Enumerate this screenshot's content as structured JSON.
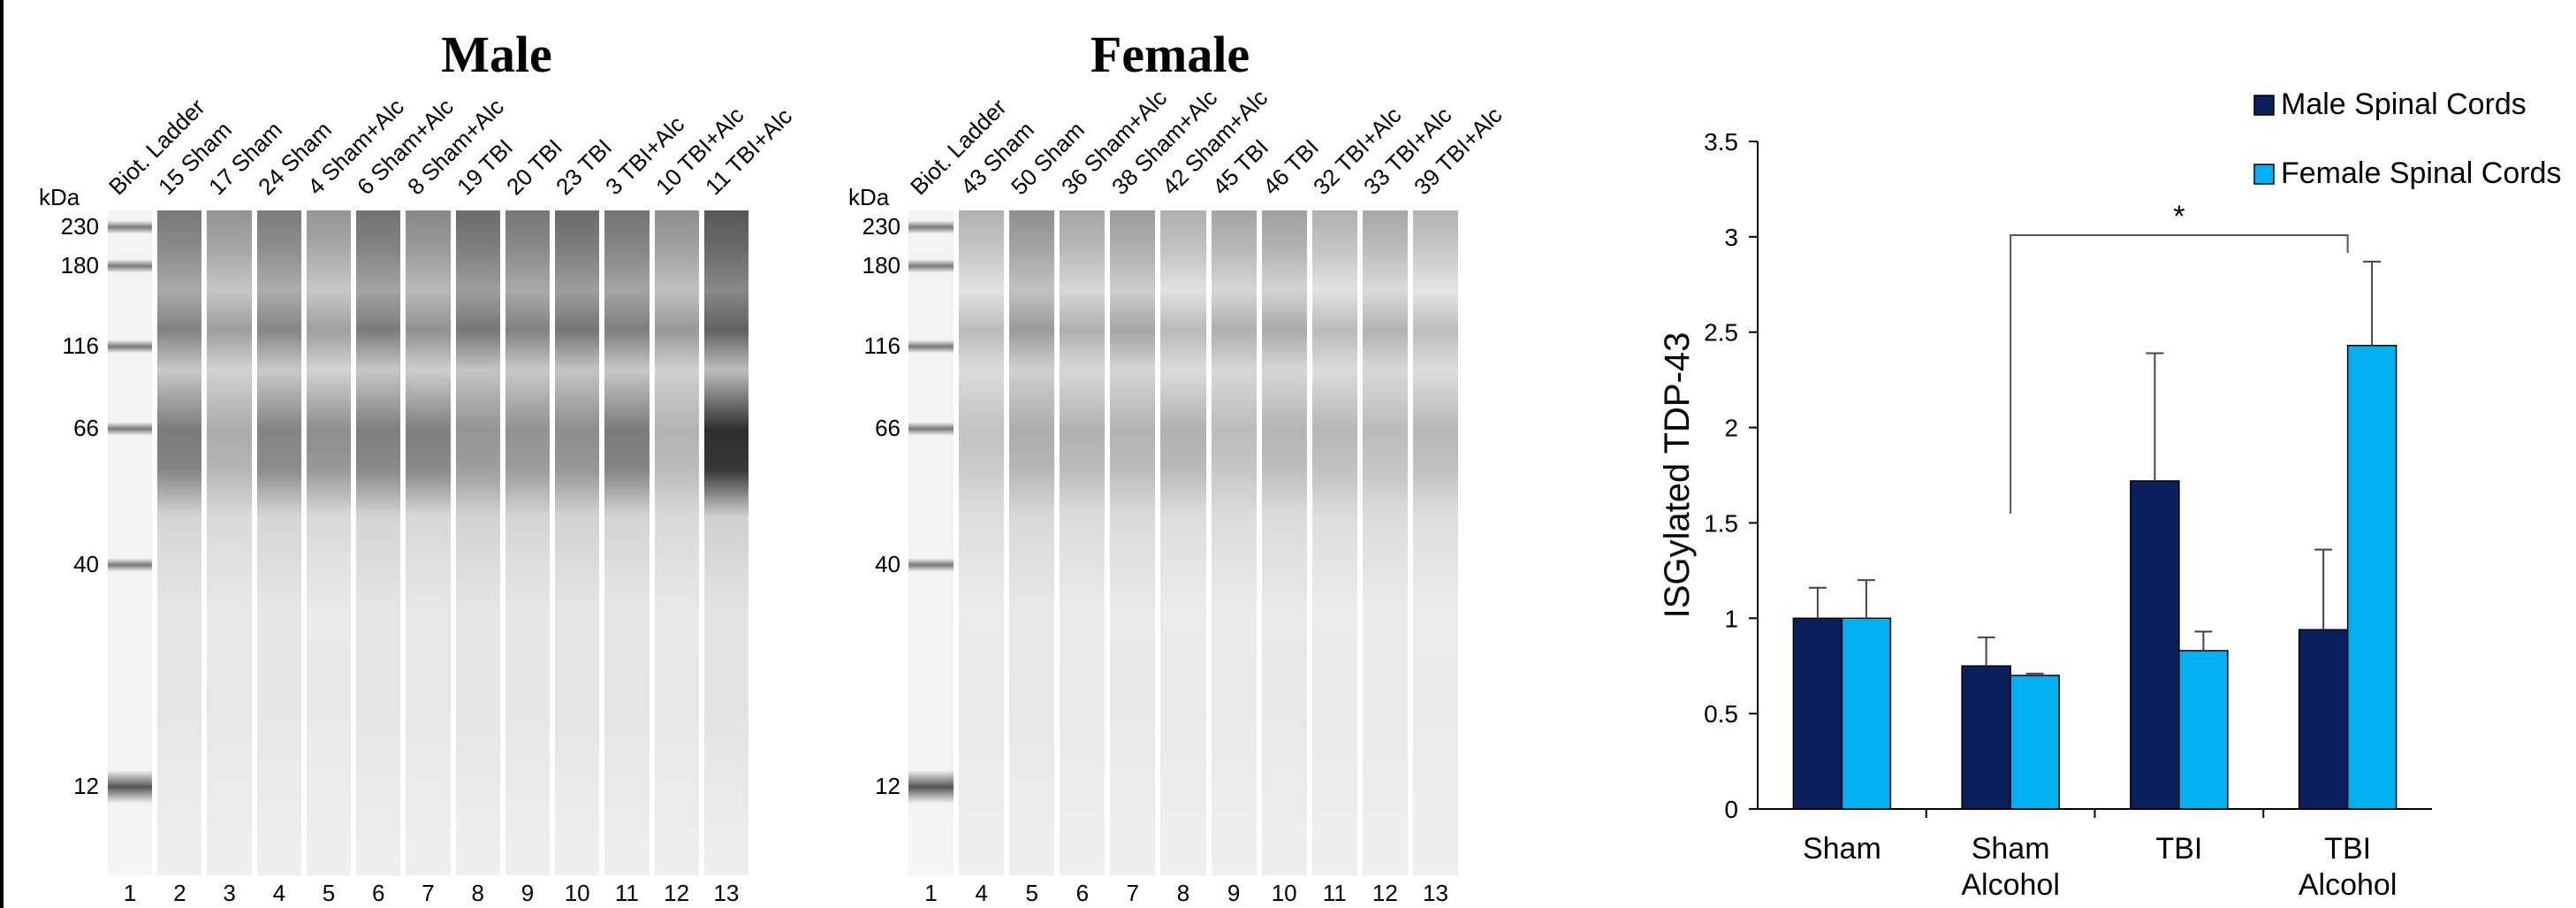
{
  "male_blot": {
    "title": "Male",
    "unit_label": "kDa",
    "markers": [
      "230",
      "180",
      "116",
      "66",
      "40",
      "12"
    ],
    "lanes": [
      "Biot. Ladder",
      "15 Sham",
      "17 Sham",
      "24 Sham",
      "4 Sham+Alc",
      "6 Sham+Alc",
      "8 Sham+Alc",
      "19 TBI",
      "20 TBI",
      "23 TBI",
      "3 TBI+Alc",
      "10 TBI+Alc",
      "11 TBI+Alc"
    ],
    "lane_numbers": [
      "1",
      "2",
      "3",
      "4",
      "5",
      "6",
      "7",
      "8",
      "9",
      "10",
      "11",
      "12",
      "13"
    ]
  },
  "female_blot": {
    "title": "Female",
    "unit_label": "kDa",
    "markers": [
      "230",
      "180",
      "116",
      "66",
      "40",
      "12"
    ],
    "lanes": [
      "Biot. Ladder",
      "43 Sham",
      "50 Sham",
      "36 Sham+Alc",
      "38 Sham+Alc",
      "42 Sham+Alc",
      "45 TBI",
      "46 TBI",
      "32 TBI+Alc",
      "33 TBI+Alc",
      "39 TBI+Alc"
    ],
    "lane_numbers": [
      "1",
      "4",
      "5",
      "6",
      "7",
      "8",
      "9",
      "10",
      "11",
      "12",
      "13"
    ]
  },
  "chart_data": {
    "type": "bar",
    "y_label": "ISGylated TDP-43",
    "categories": [
      "Sham",
      "Sham Alcohol",
      "TBI",
      "TBI Alcohol"
    ],
    "series": [
      {
        "name": "Male Spinal Cords",
        "color": "#0a1f5c",
        "values": [
          1.0,
          0.75,
          1.72,
          0.94
        ],
        "errors": [
          0.16,
          0.15,
          0.67,
          0.42
        ]
      },
      {
        "name": "Female Spinal Cords",
        "color": "#00b0f0",
        "values": [
          1.0,
          0.7,
          0.83,
          2.43
        ],
        "errors": [
          0.2,
          0.01,
          0.1,
          0.44
        ]
      }
    ],
    "ylim": [
      0,
      3.5
    ],
    "yticks": [
      0,
      0.5,
      1,
      1.5,
      2,
      2.5,
      3,
      3.5
    ],
    "annotation": "*",
    "legend": "top-right",
    "grid": false
  }
}
